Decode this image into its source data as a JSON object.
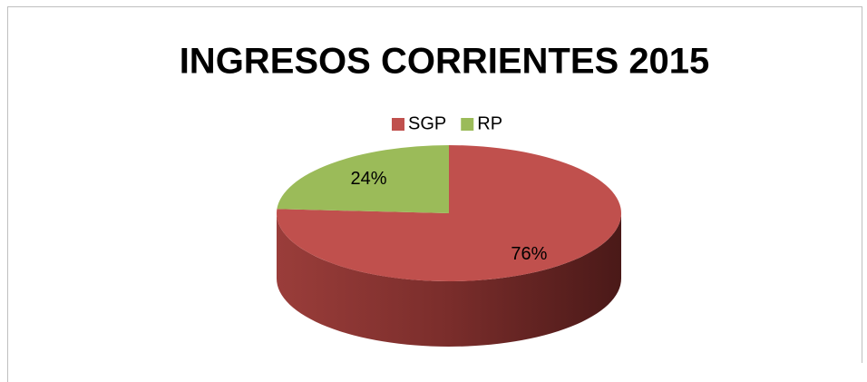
{
  "chart_data": {
    "type": "pie",
    "title": "INGRESOS CORRIENTES 2015",
    "categories": [
      "SGP",
      "RP"
    ],
    "values": [
      76,
      24
    ],
    "value_labels": [
      "76%",
      "24%"
    ],
    "colors": [
      "#c0504d",
      "#9bbb59"
    ],
    "legend": "top",
    "three_d": true
  }
}
